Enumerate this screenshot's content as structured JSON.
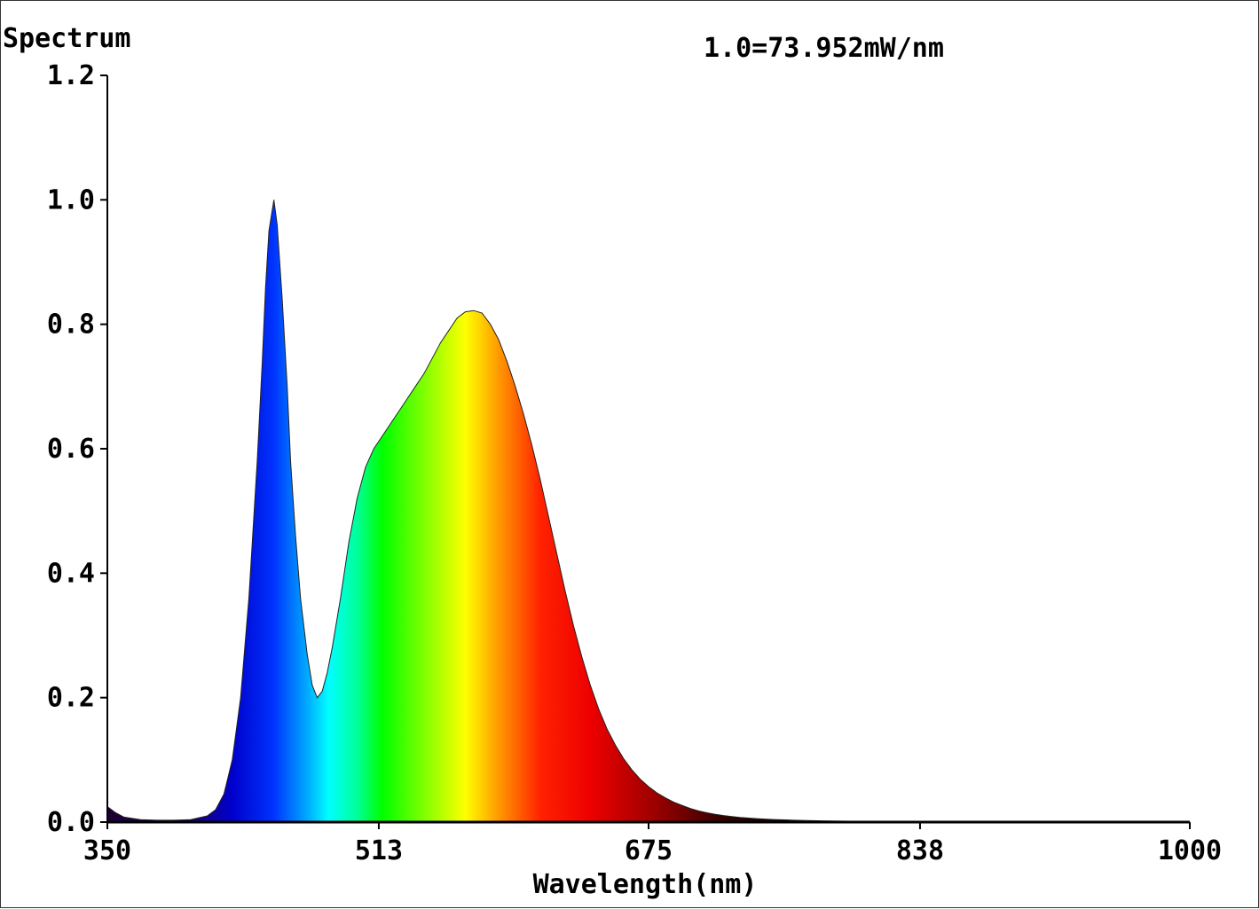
{
  "chart_data": {
    "type": "area",
    "title": "Spectrum",
    "annotation": "1.0=73.952mW/nm",
    "xlabel": "Wavelength(nm)",
    "ylabel": "",
    "xlim": [
      350,
      1000
    ],
    "ylim": [
      0,
      1.2
    ],
    "x_ticks": [
      "350",
      "513",
      "675",
      "838",
      "1000"
    ],
    "y_ticks": [
      "0.0",
      "0.2",
      "0.4",
      "0.6",
      "0.8",
      "1.0",
      "1.2"
    ],
    "grid": false,
    "legend": "none",
    "fill": "visible-spectrum color gradient",
    "series": [
      {
        "x": [
          350,
          355,
          360,
          370,
          380,
          390,
          400,
          410,
          415,
          420,
          425,
          430,
          435,
          440,
          443,
          445,
          447,
          450,
          452,
          455,
          458,
          460,
          463,
          466,
          470,
          473,
          476,
          479,
          482,
          485,
          490,
          495,
          500,
          505,
          510,
          515,
          520,
          525,
          530,
          535,
          540,
          545,
          550,
          555,
          560,
          565,
          570,
          575,
          580,
          585,
          590,
          595,
          600,
          605,
          610,
          615,
          620,
          625,
          630,
          635,
          640,
          645,
          650,
          655,
          660,
          665,
          670,
          675,
          680,
          685,
          690,
          695,
          700,
          705,
          710,
          715,
          720,
          725,
          730,
          740,
          750,
          760,
          770,
          780,
          790,
          800,
          820,
          850,
          900,
          1000
        ],
        "y": [
          0.025,
          0.015,
          0.008,
          0.004,
          0.003,
          0.003,
          0.004,
          0.01,
          0.02,
          0.045,
          0.1,
          0.2,
          0.36,
          0.58,
          0.74,
          0.86,
          0.95,
          1.0,
          0.96,
          0.84,
          0.7,
          0.58,
          0.46,
          0.36,
          0.27,
          0.22,
          0.2,
          0.21,
          0.24,
          0.28,
          0.36,
          0.45,
          0.52,
          0.57,
          0.6,
          0.62,
          0.64,
          0.66,
          0.68,
          0.7,
          0.72,
          0.745,
          0.77,
          0.79,
          0.81,
          0.82,
          0.822,
          0.818,
          0.8,
          0.775,
          0.74,
          0.7,
          0.655,
          0.605,
          0.55,
          0.49,
          0.43,
          0.37,
          0.315,
          0.265,
          0.22,
          0.182,
          0.15,
          0.124,
          0.102,
          0.084,
          0.069,
          0.057,
          0.047,
          0.039,
          0.032,
          0.027,
          0.022,
          0.018,
          0.015,
          0.0125,
          0.0105,
          0.009,
          0.0075,
          0.0055,
          0.0042,
          0.0033,
          0.0026,
          0.002,
          0.0016,
          0.0013,
          0.0009,
          0.0005,
          0.0002,
          0.0
        ]
      }
    ]
  }
}
